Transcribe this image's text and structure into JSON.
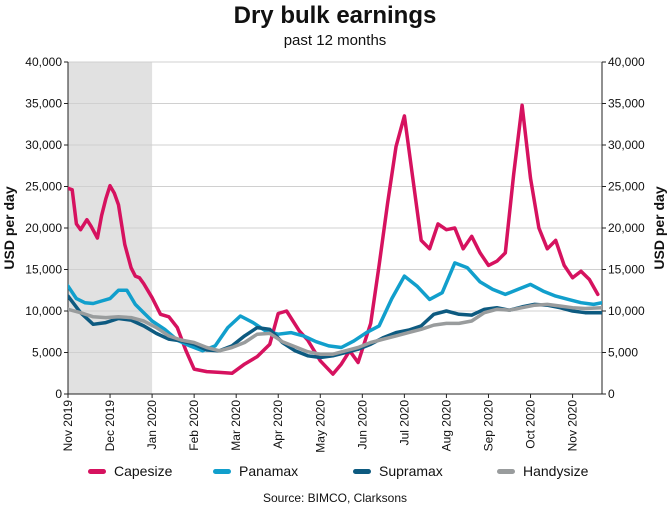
{
  "title": "Dry bulk earnings",
  "subtitle": "past 12 months",
  "source": "Source: BIMCO, Clarksons",
  "chart_data": {
    "type": "line",
    "title": "Dry bulk earnings",
    "subtitle": "past 12 months",
    "ylabel": "USD per day",
    "ylabel_right": "USD per day",
    "ylim": [
      0,
      40000
    ],
    "yticks": [
      0,
      5000,
      10000,
      15000,
      20000,
      25000,
      30000,
      35000,
      40000
    ],
    "ytick_labels": [
      "0",
      "5,000",
      "10,000",
      "15,000",
      "20,000",
      "25,000",
      "30,000",
      "35,000",
      "40,000"
    ],
    "xlim": [
      0,
      12.7
    ],
    "x_tick_labels": [
      "Nov 2019",
      "Dec 2019",
      "Jan 2020",
      "Feb 2020",
      "Mar 2020",
      "Apr 2020",
      "May 2020",
      "Jun 2020",
      "Jul 2020",
      "Aug 2020",
      "Sep 2020",
      "Oct 2020",
      "Nov 2020"
    ],
    "shaded_region": [
      0,
      2
    ],
    "grid": true,
    "legend_position": "bottom",
    "series": [
      {
        "name": "Capesize",
        "color": "#d6125f",
        "x": [
          0,
          0.1,
          0.2,
          0.3,
          0.45,
          0.55,
          0.7,
          0.8,
          0.9,
          1.0,
          1.1,
          1.2,
          1.35,
          1.5,
          1.6,
          1.7,
          1.8,
          2.0,
          2.2,
          2.4,
          2.6,
          2.8,
          3.0,
          3.3,
          3.6,
          3.9,
          4.2,
          4.5,
          4.8,
          5.0,
          5.2,
          5.5,
          5.7,
          6.0,
          6.3,
          6.5,
          6.7,
          6.9,
          7.2,
          7.4,
          7.6,
          7.8,
          8.0,
          8.2,
          8.4,
          8.6,
          8.8,
          9.0,
          9.2,
          9.4,
          9.6,
          9.8,
          10.0,
          10.2,
          10.4,
          10.6,
          10.8,
          11.0,
          11.2,
          11.4,
          11.6,
          11.8,
          12.0,
          12.2,
          12.4,
          12.6
        ],
        "y": [
          24800,
          24600,
          20500,
          19800,
          21000,
          20200,
          18800,
          21500,
          23500,
          25100,
          24200,
          22800,
          18000,
          15200,
          14200,
          14000,
          13300,
          11600,
          9600,
          9300,
          8000,
          5300,
          3000,
          2700,
          2600,
          2500,
          3600,
          4500,
          6000,
          9700,
          10000,
          7600,
          6500,
          4000,
          2400,
          3600,
          5200,
          3800,
          8500,
          15500,
          23000,
          29800,
          33500,
          26000,
          18500,
          17500,
          20500,
          19800,
          20000,
          17500,
          19000,
          17000,
          15500,
          16000,
          17000,
          26500,
          34800,
          26000,
          20000,
          17500,
          18500,
          15500,
          14000,
          14800,
          13800,
          12000
        ]
      },
      {
        "name": "Panamax",
        "color": "#119fcc",
        "x": [
          0,
          0.2,
          0.4,
          0.6,
          0.8,
          1.0,
          1.2,
          1.4,
          1.6,
          1.8,
          2.0,
          2.3,
          2.6,
          2.9,
          3.2,
          3.5,
          3.8,
          4.1,
          4.4,
          4.7,
          5.0,
          5.3,
          5.6,
          5.9,
          6.2,
          6.5,
          6.8,
          7.1,
          7.4,
          7.7,
          8.0,
          8.3,
          8.6,
          8.9,
          9.2,
          9.5,
          9.8,
          10.1,
          10.4,
          10.7,
          11.0,
          11.3,
          11.6,
          11.9,
          12.2,
          12.5,
          12.7
        ],
        "y": [
          13000,
          11500,
          11000,
          10900,
          11200,
          11500,
          12500,
          12500,
          10800,
          9800,
          8800,
          7800,
          6500,
          5800,
          5200,
          5800,
          8000,
          9400,
          8600,
          7600,
          7200,
          7400,
          7000,
          6300,
          5800,
          5600,
          6400,
          7400,
          8200,
          11500,
          14200,
          13000,
          11400,
          12200,
          15800,
          15200,
          13500,
          12600,
          12000,
          12600,
          13200,
          12400,
          11800,
          11400,
          11000,
          10800,
          11000
        ]
      },
      {
        "name": "Supramax",
        "color": "#0d5a80",
        "x": [
          0,
          0.3,
          0.6,
          0.9,
          1.2,
          1.5,
          1.8,
          2.1,
          2.4,
          2.7,
          3.0,
          3.3,
          3.6,
          3.9,
          4.2,
          4.5,
          4.8,
          5.1,
          5.4,
          5.7,
          6.0,
          6.3,
          6.6,
          6.9,
          7.2,
          7.5,
          7.8,
          8.1,
          8.4,
          8.7,
          9.0,
          9.3,
          9.6,
          9.9,
          10.2,
          10.5,
          10.8,
          11.1,
          11.4,
          11.7,
          12.0,
          12.3,
          12.7
        ],
        "y": [
          11800,
          9800,
          8400,
          8600,
          9100,
          8900,
          8200,
          7300,
          6600,
          6400,
          6000,
          5300,
          5200,
          5800,
          7000,
          8000,
          7800,
          6200,
          5200,
          4600,
          4400,
          4600,
          5000,
          5400,
          6000,
          6800,
          7400,
          7700,
          8200,
          9600,
          10000,
          9600,
          9500,
          10200,
          10400,
          10100,
          10500,
          10800,
          10700,
          10400,
          10000,
          9800,
          9800
        ]
      },
      {
        "name": "Handysize",
        "color": "#999c9d",
        "x": [
          0,
          0.3,
          0.6,
          0.9,
          1.2,
          1.5,
          1.8,
          2.1,
          2.4,
          2.7,
          3.0,
          3.3,
          3.6,
          3.9,
          4.2,
          4.5,
          4.8,
          5.1,
          5.4,
          5.7,
          6.0,
          6.3,
          6.6,
          6.9,
          7.2,
          7.5,
          7.8,
          8.1,
          8.4,
          8.7,
          9.0,
          9.3,
          9.6,
          9.9,
          10.2,
          10.5,
          10.8,
          11.1,
          11.4,
          11.7,
          12.0,
          12.3,
          12.7
        ],
        "y": [
          10200,
          9800,
          9300,
          9200,
          9300,
          9200,
          8800,
          8000,
          7000,
          6500,
          6200,
          5600,
          5200,
          5600,
          6200,
          7200,
          7300,
          6300,
          5700,
          5100,
          4800,
          4800,
          5200,
          5600,
          6200,
          6600,
          7000,
          7400,
          7800,
          8300,
          8500,
          8500,
          8800,
          9800,
          10200,
          10100,
          10400,
          10700,
          10800,
          10600,
          10400,
          10300,
          10400
        ]
      }
    ]
  }
}
